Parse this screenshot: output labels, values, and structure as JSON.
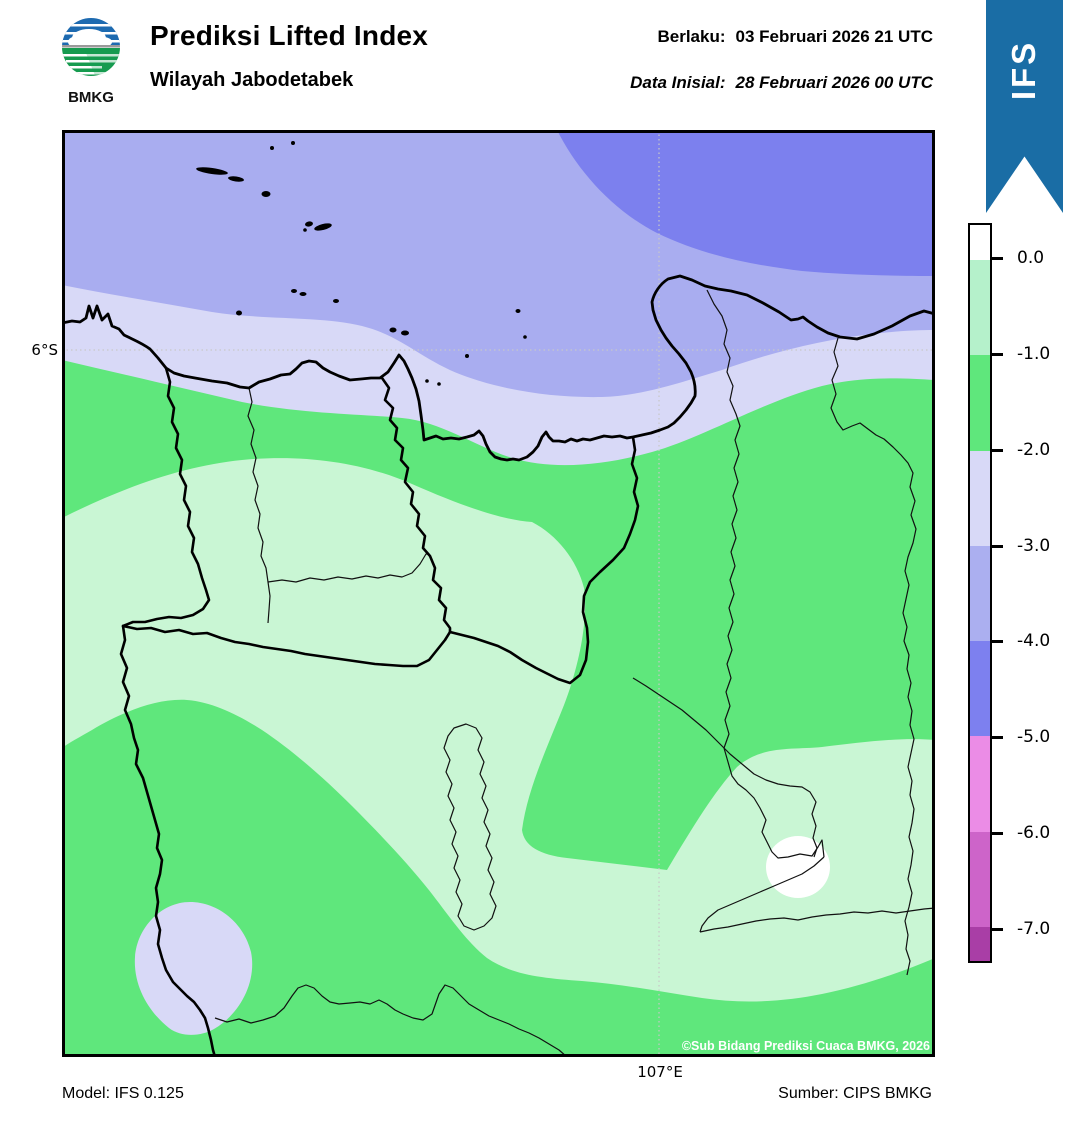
{
  "header": {
    "logo_text": "BMKG",
    "title": "Prediksi Lifted Index",
    "subtitle": "Wilayah Jabodetabek",
    "valid_label": "Berlaku:",
    "valid_value": "03 Februari 2026 21 UTC",
    "init_label": "Data Inisial:",
    "init_value": "28 Februari 2026 00 UTC"
  },
  "ribbon": {
    "label": "IFS",
    "color": "#1a6da5"
  },
  "map": {
    "lat_tick": "6°S",
    "lon_tick": "107°E",
    "copyright": "©Sub Bidang Prediksi Cuaca BMKG, 2026",
    "colors": {
      "band_pos": "#ffffff",
      "band_0_1": "#c9f6d4",
      "band_1_2": "#5fe77c",
      "band_2_3": "#d8d9f7",
      "band_3_4": "#a9adf0",
      "band_4_5": "#7c80ee",
      "coast": "#000000",
      "gridline": "#c8c8c8"
    }
  },
  "colorbar": {
    "tick_labels": [
      "0.0",
      "-1.0",
      "-2.0",
      "-3.0",
      "-4.0",
      "-5.0",
      "-6.0",
      "-7.0"
    ],
    "segment_colors": [
      "#ffffff",
      "#b5f1cb",
      "#5fe77c",
      "#d8d9f7",
      "#abaff0",
      "#7d80ef",
      "#eb8ce6",
      "#cd64c9",
      "#a93ea6"
    ]
  },
  "footer": {
    "model": "Model: IFS 0.125",
    "source": "Sumber: CIPS BMKG"
  }
}
